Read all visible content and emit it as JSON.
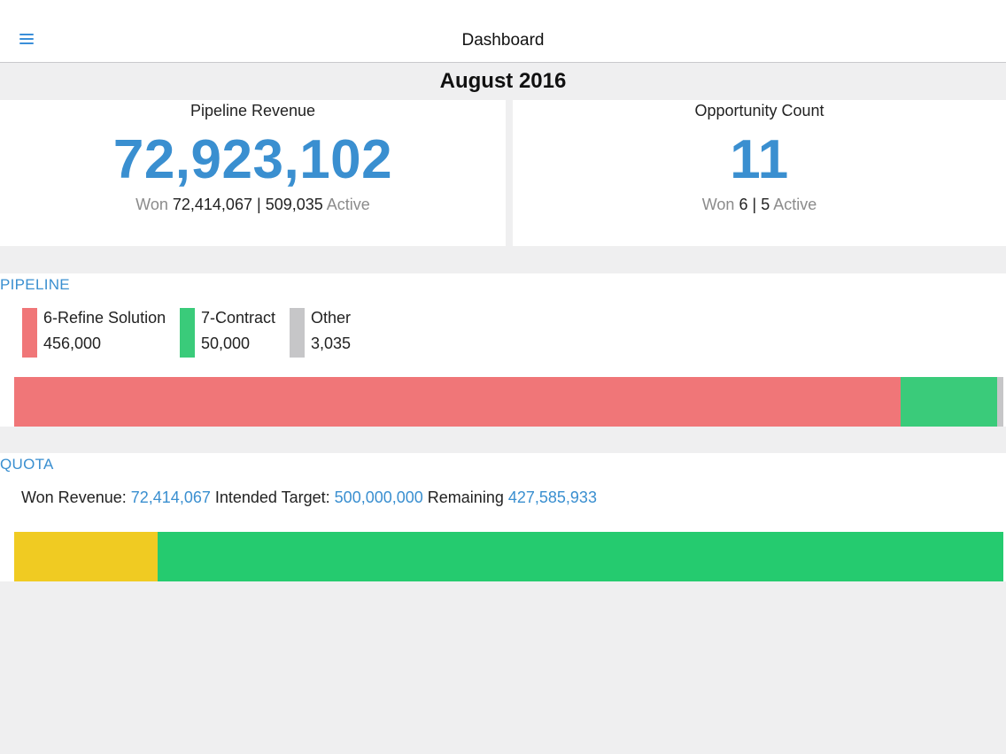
{
  "header": {
    "title": "Dashboard"
  },
  "period": "August 2016",
  "pipeline_revenue": {
    "title": "Pipeline Revenue",
    "total": "72,923,102",
    "won_label": "Won",
    "won": "72,414,067",
    "separator": "|",
    "active": "509,035",
    "active_label": "Active"
  },
  "opportunity_count": {
    "title": "Opportunity Count",
    "total": "11",
    "won_label": "Won",
    "won": "6",
    "separator": "|",
    "active": "5",
    "active_label": "Active"
  },
  "pipeline": {
    "title": "PIPELINE",
    "stages": [
      {
        "label": "6-Refine Solution",
        "value": "456,000",
        "amount": 456000,
        "color": "#f07678"
      },
      {
        "label": "7-Contract",
        "value": "50,000",
        "amount": 50000,
        "color": "#3acb7a"
      },
      {
        "label": "Other",
        "value": "3,035",
        "amount": 3035,
        "color": "#c6c6c8"
      }
    ]
  },
  "quota": {
    "title": "QUOTA",
    "won_revenue_label": "Won Revenue:",
    "won_revenue": "72,414,067",
    "target_label": "Intended Target:",
    "target": "500,000,000",
    "remaining_label": "Remaining",
    "remaining": "427,585,933",
    "won_amount": 72414067,
    "remaining_amount": 427585933,
    "won_color": "#f0cb22",
    "remaining_color": "#25cb6f"
  },
  "colors": {
    "accent": "#3a8fd0",
    "background": "#efeff0"
  },
  "icons": {
    "menu": "hamburger-menu-icon"
  }
}
